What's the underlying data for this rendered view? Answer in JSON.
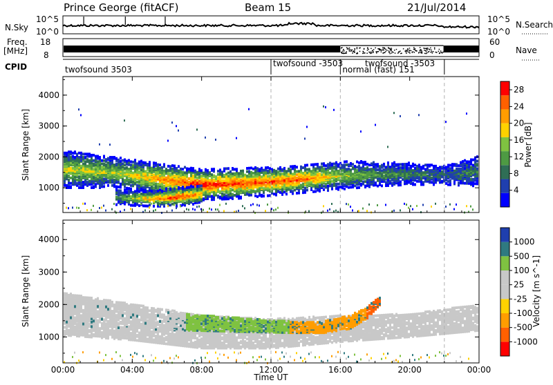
{
  "header": {
    "station": "Prince George (fitACF)",
    "beam": "Beam 15",
    "date": "21/Jul/2014"
  },
  "top_panels": {
    "nsky_label": "N.Sky",
    "nsky_ticks": [
      "10^5",
      "10^0"
    ],
    "nsearch_label": "N.Search",
    "nsearch_ticks": [
      "10^5",
      "10^0"
    ],
    "freq_label_line1": "Freq.",
    "freq_label_line2": "[MHz]",
    "freq_ticks": [
      "18",
      "8"
    ],
    "nave_label": "Nave",
    "nave_ticks": [
      "60",
      "0"
    ],
    "cpid_label": "CPID"
  },
  "cpid_segments": [
    {
      "label": "twofsound 3503",
      "start_hour": 0
    },
    {
      "label": "twofsound -3503",
      "start_hour": 12
    },
    {
      "label": "normal (fast) 151",
      "start_hour": 16
    },
    {
      "label": "twofsound -3503",
      "start_hour": 17.3
    },
    {
      "label": "",
      "start_hour": 22
    }
  ],
  "chart_data": [
    {
      "type": "heatmap",
      "title": "Power",
      "xlabel": "Time UT",
      "ylabel": "Slant Range [km]",
      "xlim": [
        "00:00",
        "00:00"
      ],
      "x_ticks": [
        "00:00",
        "04:00",
        "08:00",
        "12:00",
        "16:00",
        "20:00",
        "00:00"
      ],
      "ylim": [
        200,
        4600
      ],
      "y_ticks": [
        1000,
        2000,
        3000,
        4000
      ],
      "colorbar": {
        "label": "Power [dB]",
        "ticks": [
          4,
          8,
          12,
          16,
          20,
          24,
          28
        ],
        "range": [
          0,
          30
        ]
      },
      "bands": [
        {
          "hours": [
            0,
            3,
            6,
            8,
            10,
            12,
            14,
            16,
            18,
            20,
            22,
            24
          ],
          "center_km": [
            1650,
            1550,
            1300,
            1150,
            1200,
            1250,
            1350,
            1450,
            1500,
            1500,
            1450,
            1600
          ],
          "width_km": [
            600,
            500,
            500,
            500,
            500,
            450,
            450,
            450,
            400,
            350,
            300,
            500
          ],
          "peak_db": [
            18,
            16,
            24,
            29,
            27,
            27,
            25,
            16,
            12,
            10,
            8,
            10
          ]
        },
        {
          "hours": [
            3,
            5,
            6.5,
            8
          ],
          "center_km": [
            750,
            700,
            750,
            850
          ],
          "width_km": [
            250,
            250,
            300,
            300
          ],
          "peak_db": [
            10,
            22,
            28,
            22
          ]
        }
      ]
    },
    {
      "type": "heatmap",
      "title": "Velocity",
      "xlabel": "Time UT",
      "ylabel": "Slant Range [km]",
      "xlim": [
        "00:00",
        "00:00"
      ],
      "x_ticks": [
        "00:00",
        "04:00",
        "08:00",
        "12:00",
        "16:00",
        "20:00",
        "00:00"
      ],
      "ylim": [
        200,
        4600
      ],
      "y_ticks": [
        1000,
        2000,
        3000,
        4000
      ],
      "colorbar": {
        "label": "Velocity [m s^-1]",
        "ticks": [
          "1000",
          "500",
          "100",
          "25",
          "-25",
          "-100",
          "-500",
          "-1000"
        ]
      },
      "bands": [
        {
          "hours": [
            0,
            4,
            7,
            9,
            11,
            13,
            15,
            16.5,
            17.5,
            18.3
          ],
          "center_km": [
            1750,
            1600,
            1500,
            1450,
            1400,
            1350,
            1350,
            1500,
            1800,
            2200
          ],
          "width_km": [
            700,
            600,
            500,
            450,
            400,
            350,
            350,
            400,
            350,
            250
          ],
          "velocity_class": [
            "-25",
            "25",
            "100",
            "100",
            "100",
            "-100",
            "-100",
            "-100",
            "-500",
            "-500"
          ]
        }
      ]
    }
  ],
  "colors": {
    "power_scale": [
      "#0000ff",
      "#1f3fae",
      "#2f6e55",
      "#4e9a43",
      "#7fc241",
      "#ffd200",
      "#ff9d00",
      "#ff6000",
      "#ff0000"
    ],
    "velocity_scale": [
      "#1f3fae",
      "#2f7a80",
      "#7fc241",
      "#c8c8c8",
      "#c8c8c8",
      "#ffd200",
      "#ff9d00",
      "#ff6000",
      "#ff0000"
    ]
  }
}
